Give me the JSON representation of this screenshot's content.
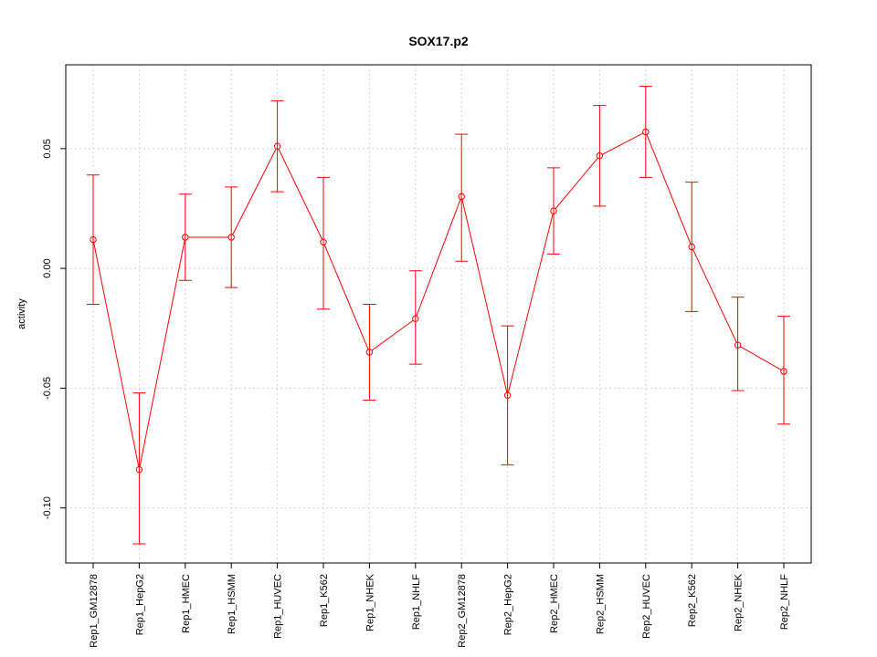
{
  "chart_data": {
    "type": "line",
    "title": "SOX17.p2",
    "xlabel": "",
    "ylabel": "activity",
    "ylim": [
      -0.123,
      0.085
    ],
    "grid": true,
    "line_color": "#ff0000",
    "grid_color": "#d3d3d3",
    "yticks": [
      -0.1,
      -0.05,
      0.0,
      0.05
    ],
    "ytick_labels": [
      "-0.10",
      "-0.05",
      "0.00",
      "0.05"
    ],
    "categories": [
      "Rep1_GM12878",
      "Rep1_HepG2",
      "Rep1_HMEC",
      "Rep1_HSMM",
      "Rep1_HUVEC",
      "Rep1_K562",
      "Rep1_NHEK",
      "Rep1_NHLF",
      "Rep2_GM12878",
      "Rep2_HepG2",
      "Rep2_HMEC",
      "Rep2_HSMM",
      "Rep2_HUVEC",
      "Rep2_K562",
      "Rep2_NHEK",
      "Rep2_NHLF"
    ],
    "values": [
      0.012,
      -0.084,
      0.013,
      0.013,
      0.051,
      0.011,
      -0.035,
      -0.021,
      0.03,
      -0.053,
      0.024,
      0.047,
      0.057,
      0.009,
      -0.032,
      -0.043
    ],
    "upper": [
      0.039,
      -0.052,
      0.031,
      0.034,
      0.07,
      0.038,
      -0.015,
      -0.001,
      0.056,
      -0.024,
      0.042,
      0.068,
      0.076,
      0.036,
      -0.012,
      -0.02
    ],
    "lower": [
      -0.015,
      -0.115,
      -0.005,
      -0.008,
      0.032,
      -0.017,
      -0.055,
      -0.04,
      0.003,
      -0.082,
      0.006,
      0.026,
      0.038,
      -0.018,
      -0.051,
      -0.065
    ]
  }
}
